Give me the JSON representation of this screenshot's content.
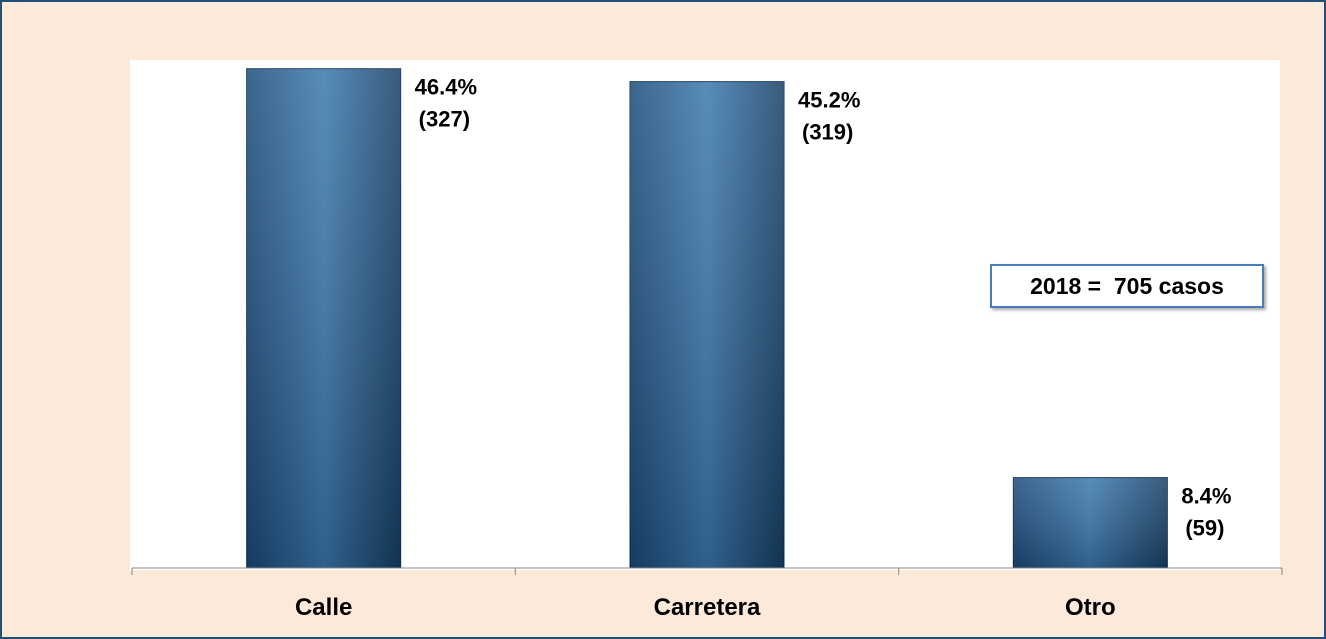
{
  "chart_data": {
    "type": "bar",
    "categories": [
      "Calle",
      "Carretera",
      "Otro"
    ],
    "values": [
      46.4,
      45.2,
      8.4
    ],
    "counts": [
      327,
      319,
      59
    ],
    "data_labels": [
      [
        "46.4%",
        "(327)"
      ],
      [
        "45.2%",
        "(319)"
      ],
      [
        "8.4%",
        "(59)"
      ]
    ],
    "ylim": [
      0,
      50
    ],
    "grid": false,
    "bar_color": "#2e6aa0",
    "annotation": "2018 =  705 casos"
  }
}
